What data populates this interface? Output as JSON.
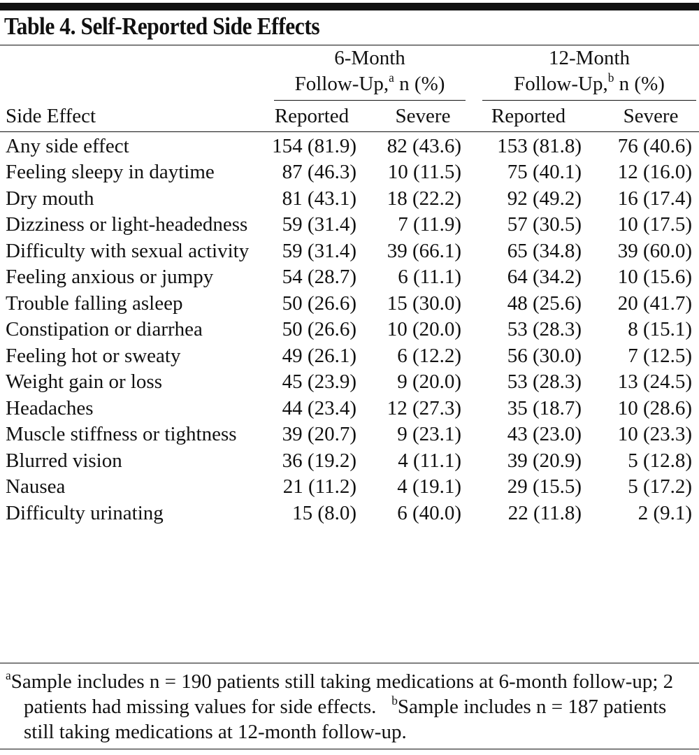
{
  "title": "Table 4. Self-Reported Side Effects",
  "header": {
    "row_label": "Side Effect",
    "groups": [
      {
        "line1": "6-Month",
        "line2": "Follow-Up,",
        "sup": "a",
        "unit": "n (%)"
      },
      {
        "line1": "12-Month",
        "line2": "Follow-Up,",
        "sup": "b",
        "unit": "n (%)"
      }
    ],
    "subcolumns": [
      "Reported",
      "Severe",
      "Reported",
      "Severe"
    ]
  },
  "table": {
    "rows": [
      [
        "Any side effect",
        "154 (81.9)",
        "82 (43.6)",
        "153 (81.8)",
        "76 (40.6)"
      ],
      [
        "Feeling sleepy in daytime",
        "87 (46.3)",
        "10 (11.5)",
        "75 (40.1)",
        "12 (16.0)"
      ],
      [
        "Dry mouth",
        "81 (43.1)",
        "18 (22.2)",
        "92 (49.2)",
        "16 (17.4)"
      ],
      [
        "Dizziness or light-headedness",
        "59 (31.4)",
        "7 (11.9)",
        "57 (30.5)",
        "10 (17.5)"
      ],
      [
        "Difficulty with sexual activity",
        "59 (31.4)",
        "39 (66.1)",
        "65 (34.8)",
        "39 (60.0)"
      ],
      [
        "Feeling anxious or jumpy",
        "54 (28.7)",
        "6 (11.1)",
        "64 (34.2)",
        "10 (15.6)"
      ],
      [
        "Trouble falling asleep",
        "50 (26.6)",
        "15 (30.0)",
        "48 (25.6)",
        "20 (41.7)"
      ],
      [
        "Constipation or diarrhea",
        "50 (26.6)",
        "10 (20.0)",
        "53 (28.3)",
        "8 (15.1)"
      ],
      [
        "Feeling hot or sweaty",
        "49 (26.1)",
        "6 (12.2)",
        "56 (30.0)",
        "7 (12.5)"
      ],
      [
        "Weight gain or loss",
        "45 (23.9)",
        "9 (20.0)",
        "53 (28.3)",
        "13 (24.5)"
      ],
      [
        "Headaches",
        "44 (23.4)",
        "12 (27.3)",
        "35 (18.7)",
        "10 (28.6)"
      ],
      [
        "Muscle stiffness or tightness",
        "39 (20.7)",
        "9 (23.1)",
        "43 (23.0)",
        "10 (23.3)"
      ],
      [
        "Blurred vision",
        "36 (19.2)",
        "4 (11.1)",
        "39 (20.9)",
        "5 (12.8)"
      ],
      [
        "Nausea",
        "21 (11.2)",
        "4 (19.1)",
        "29 (15.5)",
        "5 (17.2)"
      ],
      [
        "Difficulty urinating",
        "15 (8.0)",
        "6 (40.0)",
        "22 (11.8)",
        "2 (9.1)"
      ]
    ]
  },
  "footnotes": [
    {
      "sup": "a",
      "text": "Sample includes n = 190 patients still taking medications at 6-month follow-up; 2 patients had missing values for side effects."
    },
    {
      "sup": "b",
      "text": "Sample includes n = 187 patients still taking medications at 12-month follow-up."
    }
  ]
}
